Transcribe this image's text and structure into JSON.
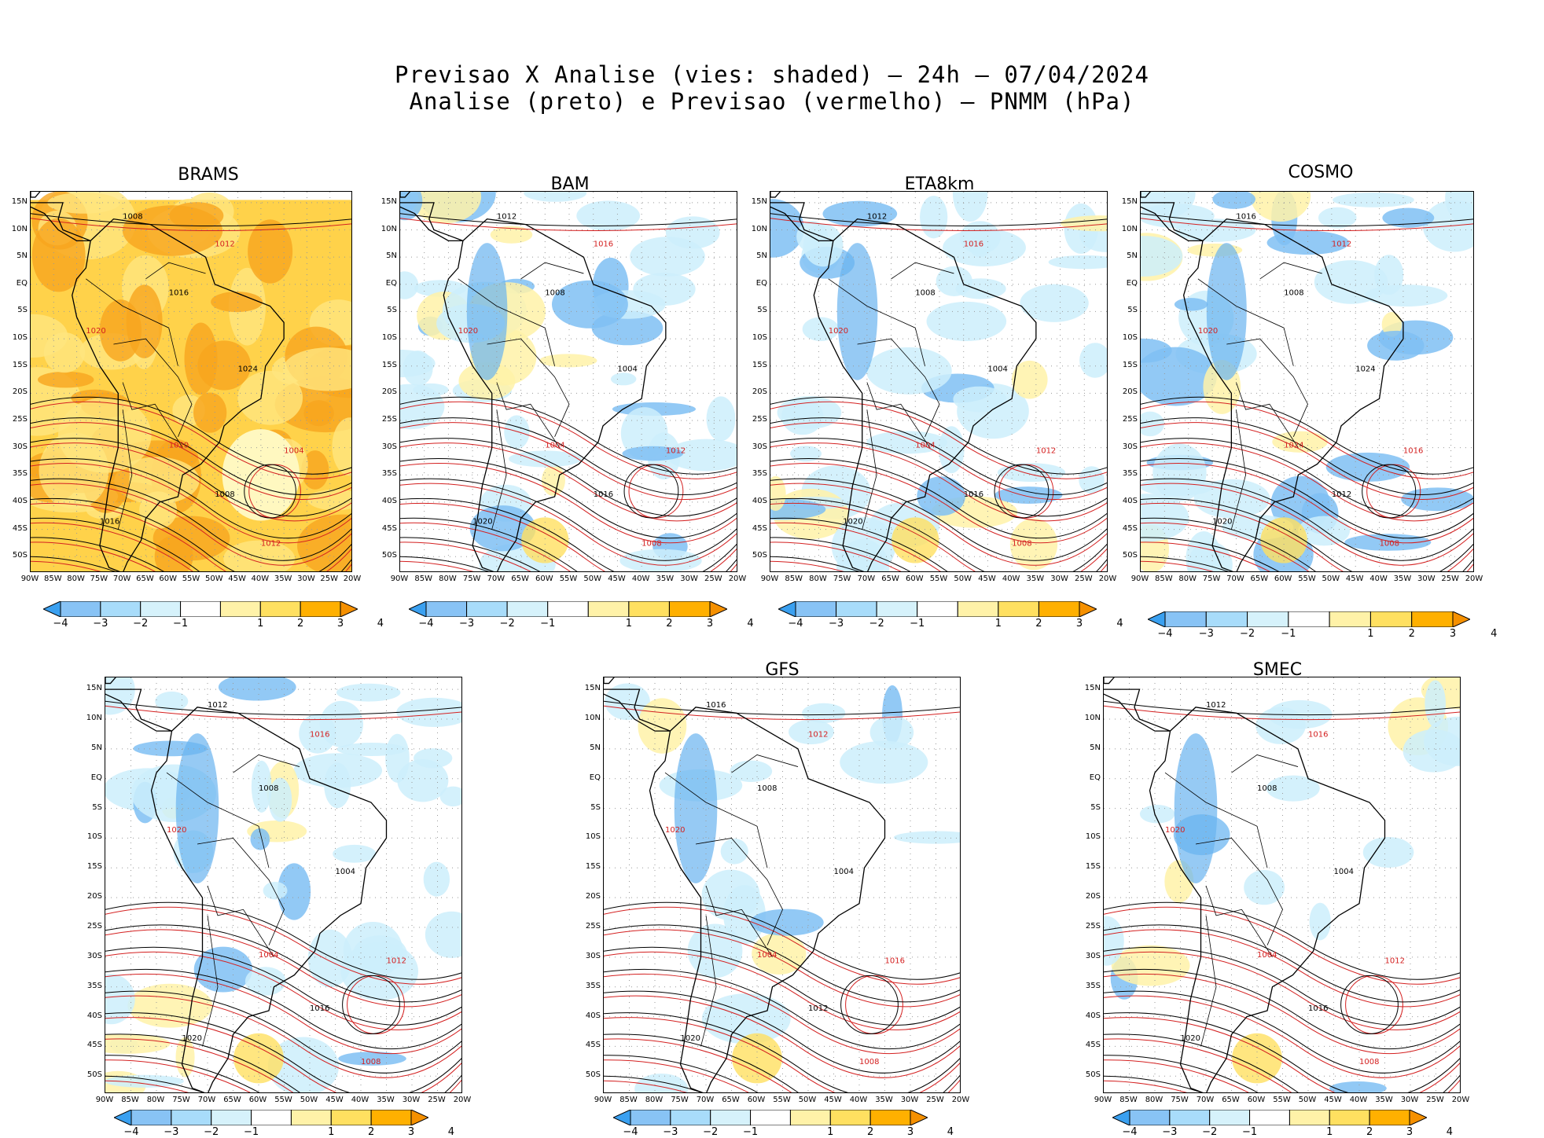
{
  "header": {
    "line1": "Previsao X Analise (vies: shaded) – 24h – 07/04/2024",
    "line2": "Analise (preto) e Previsao (vermelho) – PNMM (hPa)"
  },
  "lat_labels": [
    "15N",
    "10N",
    "5N",
    "EQ",
    "5S",
    "10S",
    "15S",
    "20S",
    "25S",
    "30S",
    "35S",
    "40S",
    "45S",
    "50S"
  ],
  "lon_labels": [
    "90W",
    "85W",
    "80W",
    "75W",
    "70W",
    "65W",
    "60W",
    "55W",
    "50W",
    "45W",
    "40W",
    "35W",
    "30W",
    "25W",
    "20W"
  ],
  "colorbar": {
    "labels": [
      "−4",
      "−3",
      "−2",
      "−1",
      "1",
      "2",
      "3",
      "4"
    ],
    "colors": [
      "#3aa0f0",
      "#88c3f5",
      "#a8dcfa",
      "#d6f2fb",
      "#ffffff",
      "#fff2a8",
      "#ffe060",
      "#ffb000",
      "#f59000"
    ]
  },
  "panels": [
    {
      "id": "brams",
      "title": "BRAMS",
      "bias": "warm",
      "contours": [
        "1008",
        "1012",
        "1016",
        "1020",
        "1024",
        "1004"
      ]
    },
    {
      "id": "bam",
      "title": "BAM",
      "bias": "cool",
      "contours": [
        "1012",
        "1016",
        "1008",
        "1020",
        "1004"
      ]
    },
    {
      "id": "eta8km",
      "title": "ETA8km",
      "bias": "cool",
      "contours": [
        "1012",
        "1016",
        "1008",
        "1020",
        "1004"
      ]
    },
    {
      "id": "cosmo",
      "title": "COSMO",
      "bias": "cool",
      "contours": [
        "1016",
        "1012",
        "1008",
        "1020",
        "1024"
      ]
    },
    {
      "id": "panel5",
      "title": "",
      "bias": "cool",
      "contours": [
        "1012",
        "1016",
        "1008",
        "1020",
        "1004"
      ]
    },
    {
      "id": "gfs",
      "title": "GFS",
      "bias": "light",
      "contours": [
        "1016",
        "1012",
        "1008",
        "1020",
        "1004"
      ]
    },
    {
      "id": "smec",
      "title": "SMEC",
      "bias": "light",
      "contours": [
        "1012",
        "1016",
        "1008",
        "1020",
        "1004"
      ]
    }
  ]
}
